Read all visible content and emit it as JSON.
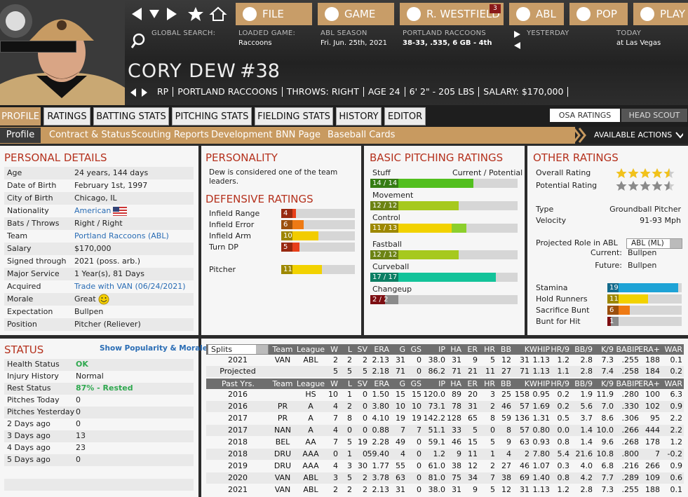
{
  "header": {
    "nav_buttons": [
      "FILE",
      "GAME",
      "R. WESTFIELD",
      "ABL",
      "POP",
      "PLAY"
    ],
    "badge": "3",
    "global_search": "GLOBAL SEARCH:",
    "loaded_game": {
      "label": "LOADED GAME:",
      "value": "Raccoons"
    },
    "season": {
      "label": "ABL SEASON",
      "value": "Fri. Jun. 25th, 2021"
    },
    "team": {
      "label": "PORTLAND RACCOONS",
      "value": "38-33, .535, 6 GB - 4th"
    },
    "yesterday": "YESTERDAY",
    "today": {
      "label": "TODAY",
      "value": "at Las Vegas"
    }
  },
  "player": {
    "name": "CORY DEW",
    "number": "#38",
    "info": [
      "RP",
      "PORTLAND RACCOONS",
      "THROWS: RIGHT",
      "AGE 24",
      "6' 2\" - 205 LBS",
      "SALARY: $170,000"
    ]
  },
  "tabs": [
    "PROFILE",
    "RATINGS",
    "BATTING STATS",
    "PITCHING STATS",
    "FIELDING STATS",
    "HISTORY",
    "EDITOR"
  ],
  "right_tabs": [
    "OSA RATINGS",
    "HEAD SCOUT"
  ],
  "subtabs": [
    "Profile",
    "Contract & Status",
    "Scouting Reports",
    "Development",
    "BNN Page",
    "Baseball Cards"
  ],
  "actions": "AVAILABLE ACTIONS",
  "personal": {
    "title": "PERSONAL DETAILS",
    "rows": [
      {
        "label": "Age",
        "value": "24 years, 144 days"
      },
      {
        "label": "Date of Birth",
        "value": "February 1st, 1997"
      },
      {
        "label": "City of Birth",
        "value": "Chicago, IL"
      },
      {
        "label": "Nationality",
        "value": "American",
        "color": "#2a6db5"
      },
      {
        "label": "Bats / Throws",
        "value": "Right / Right"
      },
      {
        "label": "Team",
        "value": "Portland Raccoons (ABL)",
        "color": "#2a6db5"
      },
      {
        "label": "Salary",
        "value": "$170,000"
      },
      {
        "label": "Signed through",
        "value": "2021 (poss. arb.)"
      },
      {
        "label": "Major Service",
        "value": "1 Year(s), 81 Days"
      },
      {
        "label": "Acquired",
        "value": "Trade with VAN (06/24/2021)",
        "color": "#2a6db5"
      },
      {
        "label": "Morale",
        "value": "Great"
      },
      {
        "label": "Expectation",
        "value": "Bullpen"
      },
      {
        "label": "Position",
        "value": "Pitcher (Reliever)"
      }
    ]
  },
  "personality": {
    "title": "PERSONALITY",
    "text": "Dew is considered one of the team leaders."
  },
  "defensive": {
    "title": "DEFENSIVE RATINGS",
    "xlim": [
      0,
      20
    ],
    "groups": [
      [
        {
          "name": "Infield Range",
          "value": 4,
          "color": "#e8401a"
        },
        {
          "name": "Infield Error",
          "value": 6,
          "color": "#ee7a14"
        },
        {
          "name": "Infield Arm",
          "value": 10,
          "color": "#f2cc00"
        },
        {
          "name": "Turn DP",
          "value": 5,
          "color": "#e8401a"
        }
      ],
      [
        {
          "name": "Pitcher",
          "value": 11,
          "color": "#f2d200"
        }
      ]
    ]
  },
  "pitching": {
    "title": "BASIC PITCHING RATINGS",
    "header": "Current / Potential",
    "xlim": [
      0,
      20
    ],
    "groups": [
      [
        {
          "name": "Stuff",
          "current": 14,
          "potential": 14,
          "label": "14 / 14",
          "color": "#52bf1e",
          "potential_color": "#52bf1e"
        },
        {
          "name": "Movement",
          "current": 12,
          "potential": 12,
          "label": "12 / 12",
          "color": "#a6c91e",
          "potential_color": "#a6c91e"
        },
        {
          "name": "Control",
          "current": 11,
          "potential": 13,
          "label": "11 / 13",
          "color": "#f2d200",
          "potential_color": "#8ccf2c"
        }
      ],
      [
        {
          "name": "Fastball",
          "current": 12,
          "potential": 12,
          "label": "12 / 12",
          "color": "#a6c91e",
          "potential_color": "#a6c91e"
        },
        {
          "name": "Curveball",
          "current": 17,
          "potential": 17,
          "label": "17 / 17",
          "color": "#13c39a",
          "potential_color": "#13c39a"
        },
        {
          "name": "Changeup",
          "current": 2,
          "potential": 2,
          "label": "2 / 2",
          "color": "#c0161c",
          "potential_color": "#c0161c"
        }
      ]
    ]
  },
  "other": {
    "title": "OTHER RATINGS",
    "stars_max": 5,
    "overall": {
      "label": "Overall Rating",
      "value": 4.5,
      "color": "#f2c21a"
    },
    "potential": {
      "label": "Potential Rating",
      "value": 4.5,
      "color": "#8a8a8a"
    },
    "info": [
      {
        "label": "Type",
        "value": "Groundball Pitcher"
      },
      {
        "label": "Velocity",
        "value": "91-93 Mph"
      }
    ],
    "role": {
      "label": "Projected Role in ABL",
      "select": "ABL (ML)",
      "rows": [
        {
          "label": "Current:",
          "value": "Bullpen"
        },
        {
          "label": "Future:",
          "value": "Bullpen"
        }
      ]
    },
    "xlim": [
      0,
      20
    ],
    "bars": [
      {
        "name": "Stamina",
        "value": 19,
        "color": "#1ea3d6"
      },
      {
        "name": "Hold Runners",
        "value": 11,
        "color": "#f2d200"
      },
      {
        "name": "Sacrifice Bunt",
        "value": 6,
        "color": "#ee7a14"
      },
      {
        "name": "Bunt for Hit",
        "value": 1,
        "color": "#c0161c"
      }
    ]
  },
  "status": {
    "title": "STATUS",
    "link": "Show Popularity & Morale",
    "rows": [
      {
        "label": "Health Status",
        "value": "OK",
        "color": "#2fa84f"
      },
      {
        "label": "Injury History",
        "value": "Normal"
      },
      {
        "label": "Rest Status",
        "value": "87% - Rested",
        "color": "#2fa84f"
      },
      {
        "label": "Pitches Today",
        "value": "0"
      },
      {
        "label": "Pitches Yesterday",
        "value": "0"
      },
      {
        "label": "2 Days ago",
        "value": "0"
      },
      {
        "label": "3 Days ago",
        "value": "13"
      },
      {
        "label": "4 Days ago",
        "value": "23"
      },
      {
        "label": "5 Days ago",
        "value": "0"
      }
    ]
  },
  "stats": {
    "columns": [
      "Team",
      "League",
      "W",
      "L",
      "SV",
      "ERA",
      "G",
      "GS",
      "IP",
      "HA",
      "ER",
      "HR",
      "BB",
      "K",
      "WHIP",
      "HR/9",
      "BB/9",
      "K/9",
      "BABIP",
      "ERA+",
      "WAR"
    ],
    "splits": "Splits",
    "past_label": "Past Yrs.",
    "current_rows": [
      [
        "2021",
        "VAN",
        "ABL",
        "2",
        "2",
        "2",
        "2.13",
        "31",
        "0",
        "38.0",
        "31",
        "9",
        "5",
        "12",
        "31",
        "1.13",
        "1.2",
        "2.8",
        "7.3",
        ".255",
        "188",
        "0.1"
      ],
      [
        "Projected",
        null,
        null,
        "5",
        "5",
        "5",
        "2.18",
        "71",
        "0",
        "86.2",
        "71",
        "21",
        "11",
        "27",
        "71",
        "1.13",
        "1.1",
        "2.8",
        "7.4",
        ".258",
        "184",
        "0.2"
      ]
    ],
    "past_rows": [
      [
        "2016",
        null,
        "HS",
        "10",
        "1",
        "0",
        "1.50",
        "15",
        "15",
        "120.0",
        "89",
        "20",
        "3",
        "25",
        "158",
        "0.95",
        "0.2",
        "1.9",
        "11.9",
        ".280",
        "100",
        "6.3"
      ],
      [
        "2016",
        "PR",
        "A",
        "4",
        "2",
        "0",
        "3.80",
        "10",
        "10",
        "73.1",
        "78",
        "31",
        "2",
        "46",
        "57",
        "1.69",
        "0.2",
        "5.6",
        "7.0",
        ".330",
        "102",
        "0.9"
      ],
      [
        "2017",
        "PR",
        "A",
        "7",
        "8",
        "0",
        "4.10",
        "19",
        "19",
        "142.2",
        "128",
        "65",
        "8",
        "59",
        "136",
        "1.31",
        "0.5",
        "3.7",
        "8.6",
        ".306",
        "95",
        "2.2"
      ],
      [
        "2017",
        "NAN",
        "A",
        "4",
        "0",
        "0",
        "0.88",
        "7",
        "7",
        "51.1",
        "33",
        "5",
        "0",
        "8",
        "57",
        "0.80",
        "0.0",
        "1.4",
        "10.0",
        ".266",
        "444",
        "2.2"
      ],
      [
        "2018",
        "BEL",
        "AA",
        "7",
        "5",
        "19",
        "2.28",
        "49",
        "0",
        "59.1",
        "46",
        "15",
        "5",
        "9",
        "63",
        "0.93",
        "0.8",
        "1.4",
        "9.6",
        ".268",
        "178",
        "1.2"
      ],
      [
        "2018",
        "DRU",
        "AAA",
        "0",
        "1",
        "0",
        "59.40",
        "4",
        "0",
        "1.2",
        "9",
        "11",
        "1",
        "4",
        "2",
        "7.80",
        "5.4",
        "21.6",
        "10.8",
        ".800",
        "7",
        "-0.2"
      ],
      [
        "2019",
        "DRU",
        "AAA",
        "4",
        "3",
        "30",
        "1.77",
        "55",
        "0",
        "61.0",
        "38",
        "12",
        "2",
        "27",
        "46",
        "1.07",
        "0.3",
        "4.0",
        "6.8",
        ".216",
        "266",
        "0.9"
      ],
      [
        "2020",
        "VAN",
        "ABL",
        "3",
        "5",
        "2",
        "3.78",
        "63",
        "0",
        "81.0",
        "75",
        "34",
        "7",
        "38",
        "69",
        "1.40",
        "0.8",
        "4.2",
        "7.7",
        ".289",
        "109",
        "0.6"
      ],
      [
        "2021",
        "VAN",
        "ABL",
        "2",
        "2",
        "2",
        "2.13",
        "31",
        "0",
        "38.0",
        "31",
        "9",
        "5",
        "12",
        "31",
        "1.13",
        "1.2",
        "2.8",
        "7.3",
        ".255",
        "188",
        "0.1"
      ]
    ]
  }
}
